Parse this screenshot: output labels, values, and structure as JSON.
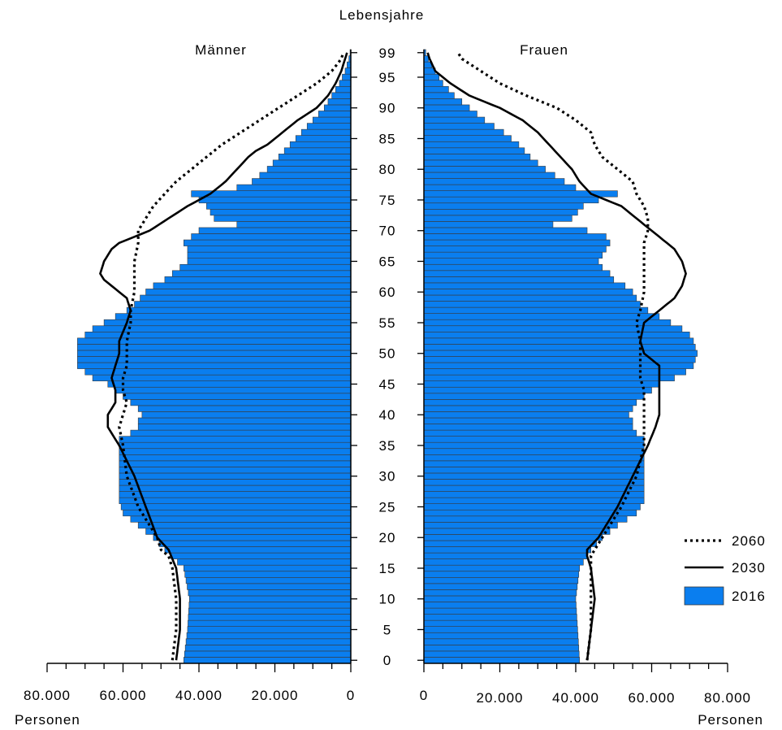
{
  "chart_data": {
    "type": "bar",
    "subtype": "population-pyramid",
    "ylabel": "Lebensjahre",
    "left_title": "Männer",
    "right_title": "Frauen",
    "xlabel_left": "Personen",
    "xlabel_right": "Personen",
    "y_ticks": [
      "0",
      "5",
      "10",
      "15",
      "20",
      "25",
      "30",
      "35",
      "40",
      "45",
      "50",
      "55",
      "60",
      "65",
      "70",
      "75",
      "80",
      "85",
      "90",
      "95",
      "99"
    ],
    "x_ticks_left": [
      "80.000",
      "60.000",
      "40.000",
      "20.000",
      "0"
    ],
    "x_ticks_right": [
      "0",
      "20.000",
      "40.000",
      "60.000",
      "80.000"
    ],
    "xlim": [
      0,
      80000
    ],
    "ylim": [
      0,
      99
    ],
    "legend": [
      {
        "name": "2060",
        "style": "dotted"
      },
      {
        "name": "2030",
        "style": "solid"
      },
      {
        "name": "2016",
        "style": "bar"
      }
    ],
    "legend_position": "bottom-right",
    "colors": {
      "bars": "#0a7eef",
      "bar_border": "#3a3a3a",
      "lines": "#000000",
      "axis": "#000000"
    },
    "series": [
      {
        "name": "2016",
        "kind": "bar",
        "sex": "male",
        "points": [
          [
            0,
            44000
          ],
          [
            5,
            43000
          ],
          [
            10,
            42500
          ],
          [
            15,
            44000
          ],
          [
            18,
            49000
          ],
          [
            20,
            52000
          ],
          [
            22,
            56000
          ],
          [
            24,
            60000
          ],
          [
            26,
            61000
          ],
          [
            28,
            61000
          ],
          [
            30,
            61000
          ],
          [
            33,
            61000
          ],
          [
            36,
            61000
          ],
          [
            37,
            58000
          ],
          [
            38,
            56000
          ],
          [
            39,
            56000
          ],
          [
            40,
            55000
          ],
          [
            41,
            56000
          ],
          [
            42,
            58000
          ],
          [
            43,
            60000
          ],
          [
            44,
            62000
          ],
          [
            45,
            64000
          ],
          [
            46,
            68000
          ],
          [
            47,
            70000
          ],
          [
            48,
            72000
          ],
          [
            50,
            72000
          ],
          [
            52,
            72000
          ],
          [
            53,
            70000
          ],
          [
            54,
            68000
          ],
          [
            55,
            65000
          ],
          [
            56,
            62000
          ],
          [
            57,
            59000
          ],
          [
            58,
            57000
          ],
          [
            60,
            54000
          ],
          [
            61,
            52000
          ],
          [
            62,
            49000
          ],
          [
            63,
            47000
          ],
          [
            64,
            45000
          ],
          [
            65,
            43000
          ],
          [
            67,
            43000
          ],
          [
            68,
            44000
          ],
          [
            69,
            42000
          ],
          [
            70,
            40000
          ],
          [
            71,
            30000
          ],
          [
            72,
            36000
          ],
          [
            74,
            38000
          ],
          [
            75,
            40000
          ],
          [
            76,
            42000
          ],
          [
            77,
            30000
          ],
          [
            78,
            26000
          ],
          [
            80,
            22000
          ],
          [
            82,
            19000
          ],
          [
            84,
            16000
          ],
          [
            86,
            13000
          ],
          [
            88,
            10000
          ],
          [
            90,
            7000
          ],
          [
            92,
            5000
          ],
          [
            94,
            3000
          ],
          [
            96,
            1500
          ],
          [
            98,
            500
          ],
          [
            99,
            200
          ]
        ]
      },
      {
        "name": "2016",
        "kind": "bar",
        "sex": "female",
        "points": [
          [
            0,
            41000
          ],
          [
            5,
            40500
          ],
          [
            10,
            40000
          ],
          [
            15,
            41000
          ],
          [
            18,
            44000
          ],
          [
            20,
            47000
          ],
          [
            22,
            51000
          ],
          [
            24,
            56000
          ],
          [
            26,
            58000
          ],
          [
            28,
            58000
          ],
          [
            30,
            58000
          ],
          [
            33,
            58000
          ],
          [
            36,
            58000
          ],
          [
            37,
            56000
          ],
          [
            38,
            55000
          ],
          [
            39,
            55000
          ],
          [
            40,
            54000
          ],
          [
            41,
            55000
          ],
          [
            42,
            56000
          ],
          [
            43,
            58000
          ],
          [
            44,
            60000
          ],
          [
            45,
            62000
          ],
          [
            46,
            66000
          ],
          [
            47,
            69000
          ],
          [
            48,
            71000
          ],
          [
            50,
            72000
          ],
          [
            52,
            71000
          ],
          [
            53,
            70000
          ],
          [
            54,
            68000
          ],
          [
            55,
            65000
          ],
          [
            56,
            62000
          ],
          [
            57,
            59000
          ],
          [
            58,
            57000
          ],
          [
            60,
            55000
          ],
          [
            61,
            53000
          ],
          [
            62,
            50000
          ],
          [
            63,
            49000
          ],
          [
            64,
            47000
          ],
          [
            65,
            46000
          ],
          [
            67,
            48000
          ],
          [
            68,
            49000
          ],
          [
            69,
            48000
          ],
          [
            70,
            43000
          ],
          [
            71,
            34000
          ],
          [
            72,
            39000
          ],
          [
            74,
            42000
          ],
          [
            75,
            46000
          ],
          [
            76,
            51000
          ],
          [
            77,
            40000
          ],
          [
            78,
            37000
          ],
          [
            80,
            32000
          ],
          [
            82,
            28000
          ],
          [
            84,
            25000
          ],
          [
            86,
            21000
          ],
          [
            88,
            16000
          ],
          [
            90,
            12000
          ],
          [
            92,
            8000
          ],
          [
            94,
            5000
          ],
          [
            96,
            3000
          ],
          [
            98,
            1200
          ],
          [
            99,
            500
          ]
        ]
      },
      {
        "name": "2030",
        "kind": "line",
        "sex": "male",
        "points": [
          [
            0,
            46000
          ],
          [
            5,
            45000
          ],
          [
            10,
            45000
          ],
          [
            15,
            46000
          ],
          [
            18,
            48000
          ],
          [
            20,
            51000
          ],
          [
            25,
            54000
          ],
          [
            30,
            57000
          ],
          [
            35,
            61000
          ],
          [
            38,
            64000
          ],
          [
            40,
            64000
          ],
          [
            42,
            62000
          ],
          [
            44,
            62000
          ],
          [
            46,
            63000
          ],
          [
            48,
            62000
          ],
          [
            50,
            61000
          ],
          [
            52,
            61000
          ],
          [
            55,
            59000
          ],
          [
            57,
            58000
          ],
          [
            59,
            59000
          ],
          [
            61,
            63000
          ],
          [
            62,
            65000
          ],
          [
            63,
            66000
          ],
          [
            65,
            65000
          ],
          [
            67,
            63000
          ],
          [
            68,
            61000
          ],
          [
            69,
            57000
          ],
          [
            70,
            53000
          ],
          [
            72,
            48000
          ],
          [
            74,
            43000
          ],
          [
            75,
            40000
          ],
          [
            76,
            37000
          ],
          [
            78,
            33000
          ],
          [
            80,
            30000
          ],
          [
            82,
            27000
          ],
          [
            83,
            25000
          ],
          [
            84,
            22000
          ],
          [
            86,
            18000
          ],
          [
            88,
            14000
          ],
          [
            90,
            9000
          ],
          [
            92,
            6000
          ],
          [
            94,
            4000
          ],
          [
            96,
            2500
          ],
          [
            98,
            1500
          ],
          [
            99,
            1000
          ]
        ]
      },
      {
        "name": "2030",
        "kind": "line",
        "sex": "female",
        "points": [
          [
            0,
            43000
          ],
          [
            5,
            44000
          ],
          [
            10,
            45000
          ],
          [
            15,
            44000
          ],
          [
            17,
            43000
          ],
          [
            18,
            43000
          ],
          [
            20,
            46000
          ],
          [
            25,
            51000
          ],
          [
            30,
            55000
          ],
          [
            35,
            59000
          ],
          [
            38,
            61000
          ],
          [
            40,
            62000
          ],
          [
            42,
            62000
          ],
          [
            44,
            62000
          ],
          [
            46,
            62000
          ],
          [
            48,
            62000
          ],
          [
            50,
            58000
          ],
          [
            52,
            57000
          ],
          [
            55,
            58000
          ],
          [
            57,
            62000
          ],
          [
            59,
            66000
          ],
          [
            61,
            68000
          ],
          [
            63,
            69000
          ],
          [
            65,
            68000
          ],
          [
            67,
            66000
          ],
          [
            69,
            62000
          ],
          [
            70,
            60000
          ],
          [
            72,
            56000
          ],
          [
            74,
            52000
          ],
          [
            75,
            48000
          ],
          [
            76,
            44000
          ],
          [
            78,
            41000
          ],
          [
            80,
            39000
          ],
          [
            82,
            36000
          ],
          [
            84,
            33000
          ],
          [
            86,
            30000
          ],
          [
            88,
            26000
          ],
          [
            90,
            20000
          ],
          [
            92,
            12000
          ],
          [
            94,
            7000
          ],
          [
            96,
            3000
          ],
          [
            98,
            1500
          ],
          [
            99,
            1000
          ]
        ]
      },
      {
        "name": "2060",
        "kind": "line",
        "sex": "male",
        "points": [
          [
            0,
            47000
          ],
          [
            5,
            46000
          ],
          [
            10,
            46000
          ],
          [
            15,
            47000
          ],
          [
            17,
            48000
          ],
          [
            18,
            50000
          ],
          [
            20,
            51000
          ],
          [
            25,
            56000
          ],
          [
            30,
            59000
          ],
          [
            35,
            60000
          ],
          [
            38,
            61000
          ],
          [
            40,
            60000
          ],
          [
            42,
            59000
          ],
          [
            44,
            60000
          ],
          [
            46,
            60000
          ],
          [
            48,
            59000
          ],
          [
            50,
            59000
          ],
          [
            52,
            59000
          ],
          [
            55,
            58000
          ],
          [
            57,
            58000
          ],
          [
            60,
            57000
          ],
          [
            63,
            57000
          ],
          [
            65,
            57000
          ],
          [
            68,
            56000
          ],
          [
            70,
            56000
          ],
          [
            72,
            54000
          ],
          [
            74,
            52000
          ],
          [
            76,
            49000
          ],
          [
            78,
            46000
          ],
          [
            80,
            42000
          ],
          [
            82,
            38000
          ],
          [
            84,
            34000
          ],
          [
            86,
            29000
          ],
          [
            88,
            24000
          ],
          [
            90,
            19000
          ],
          [
            92,
            14000
          ],
          [
            94,
            9000
          ],
          [
            96,
            5000
          ],
          [
            98,
            2500
          ],
          [
            99,
            2000
          ]
        ]
      },
      {
        "name": "2060",
        "kind": "line",
        "sex": "female",
        "points": [
          [
            0,
            43000
          ],
          [
            5,
            44000
          ],
          [
            10,
            44000
          ],
          [
            15,
            44000
          ],
          [
            17,
            44000
          ],
          [
            18,
            45000
          ],
          [
            20,
            47000
          ],
          [
            25,
            52000
          ],
          [
            30,
            56000
          ],
          [
            35,
            58000
          ],
          [
            38,
            58000
          ],
          [
            40,
            58000
          ],
          [
            42,
            58000
          ],
          [
            44,
            58000
          ],
          [
            46,
            57000
          ],
          [
            48,
            57000
          ],
          [
            50,
            57000
          ],
          [
            52,
            57000
          ],
          [
            55,
            56000
          ],
          [
            57,
            57000
          ],
          [
            60,
            58000
          ],
          [
            63,
            58000
          ],
          [
            65,
            58000
          ],
          [
            68,
            58000
          ],
          [
            70,
            59000
          ],
          [
            72,
            59000
          ],
          [
            74,
            58000
          ],
          [
            76,
            56000
          ],
          [
            78,
            55000
          ],
          [
            80,
            51000
          ],
          [
            82,
            47000
          ],
          [
            84,
            45000
          ],
          [
            86,
            44000
          ],
          [
            88,
            40000
          ],
          [
            90,
            35000
          ],
          [
            92,
            27000
          ],
          [
            94,
            20000
          ],
          [
            96,
            15000
          ],
          [
            98,
            10000
          ],
          [
            99,
            9000
          ]
        ]
      }
    ]
  }
}
